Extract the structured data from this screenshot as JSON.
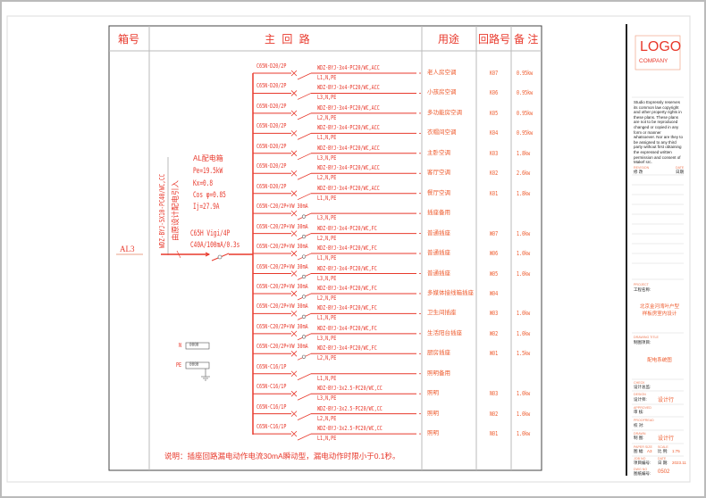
{
  "header": {
    "box_no": "箱号",
    "main_circuit": "主 回 路",
    "usage": "用途",
    "circuit_no": "回路号",
    "remarks": "备 注"
  },
  "box": {
    "id": "AL3",
    "title": "AL配电箱",
    "pe": "Pe=19.5kW",
    "kx": "Kx=0.8",
    "cos": "Cos φ=0.85",
    "ij": "Ij=27.9A",
    "main_breaker": "C65H Vigi/4P",
    "main_breaker_rating": "C40A/100mA/0.3s",
    "incoming_cable": "WDZ-BYJ-5X10-PC40/WC,CC",
    "incoming_source": "由原设计配电引入",
    "n_terminal": "N",
    "pe_terminal": "PE",
    "terminal_block": "0000"
  },
  "circuits": [
    {
      "breaker": "C65N-D20/2P",
      "cable": "WDZ-BYJ-3x4-PC20/WC,ACC",
      "phase": "L1,N,PE",
      "usage": "老人房空调",
      "no": "K07",
      "remark": "0.95kw",
      "rcd": false
    },
    {
      "breaker": "C65N-D20/2P",
      "cable": "WDZ-BYJ-3x4-PC20/WC,ACC",
      "phase": "L3,N,PE",
      "usage": "小孩房空调",
      "no": "K06",
      "remark": "0.95kw",
      "rcd": false
    },
    {
      "breaker": "C65N-D20/2P",
      "cable": "WDZ-BYJ-3x4-PC20/WC,ACC",
      "phase": "L2,N,PE",
      "usage": "多功能房空调",
      "no": "K05",
      "remark": "0.95kw",
      "rcd": false
    },
    {
      "breaker": "C65N-D20/2P",
      "cable": "WDZ-BYJ-3x4-PC20/WC,ACC",
      "phase": "L1,N,PE",
      "usage": "衣帽间空调",
      "no": "K04",
      "remark": "0.95kw",
      "rcd": false
    },
    {
      "breaker": "C65N-D20/2P",
      "cable": "WDZ-BYJ-3x4-PC20/WC,ACC",
      "phase": "L3,N,PE",
      "usage": "主卧空调",
      "no": "K03",
      "remark": "1.8kw",
      "rcd": false
    },
    {
      "breaker": "C65N-D20/2P",
      "cable": "WDZ-BYJ-3x4-PC20/WC,ACC",
      "phase": "L2,N,PE",
      "usage": "客厅空调",
      "no": "K02",
      "remark": "2.6kw",
      "rcd": false
    },
    {
      "breaker": "C65N-D20/2P",
      "cable": "WDZ-BYJ-3x4-PC20/WC,ACC",
      "phase": "L1,N,PE",
      "usage": "餐厅空调",
      "no": "K01",
      "remark": "1.8kw",
      "rcd": false
    },
    {
      "breaker": "C65N-C20/2P+VW 30mA",
      "cable": "",
      "phase": "L3,N,PE",
      "usage": "插座备用",
      "no": "",
      "remark": "",
      "rcd": true
    },
    {
      "breaker": "C65N-C20/2P+VW 30mA",
      "cable": "WDZ-BYJ-3x4-PC20/WC,FC",
      "phase": "L2,N,PE",
      "usage": "普通插座",
      "no": "W07",
      "remark": "1.0kw",
      "rcd": true
    },
    {
      "breaker": "C65N-C20/2P+VW 30mA",
      "cable": "WDZ-BYJ-3x4-PC20/WC,FC",
      "phase": "L1,N,PE",
      "usage": "普通插座",
      "no": "W06",
      "remark": "1.0kw",
      "rcd": true
    },
    {
      "breaker": "C65N-C20/2P+VW 30mA",
      "cable": "WDZ-BYJ-3x4-PC20/WC,FC",
      "phase": "L3,N,PE",
      "usage": "普通插座",
      "no": "W05",
      "remark": "1.0kw",
      "rcd": true
    },
    {
      "breaker": "C65N-C20/2P+VW 30mA",
      "cable": "WDZ-BYJ-3x4-PC20/WC,FC",
      "phase": "L2,N,PE",
      "usage": "多媒体接线箱插座",
      "no": "W04",
      "remark": "",
      "rcd": true
    },
    {
      "breaker": "C65N-C20/2P+VW 30mA",
      "cable": "WDZ-BYJ-3x4-PC20/WC,FC",
      "phase": "L1,N,PE",
      "usage": "卫生间插座",
      "no": "W03",
      "remark": "1.0kw",
      "rcd": true
    },
    {
      "breaker": "C65N-C20/2P+VW 30mA",
      "cable": "WDZ-BYJ-3x4-PC20/WC,FC",
      "phase": "L3,N,PE",
      "usage": "生活阳台插座",
      "no": "W02",
      "remark": "1.0kw",
      "rcd": true
    },
    {
      "breaker": "C65N-C20/2P+VW 30mA",
      "cable": "WDZ-BYJ-3x4-PC20/WC,FC",
      "phase": "L2,N,PE",
      "usage": "厨房插座",
      "no": "W01",
      "remark": "1.5kw",
      "rcd": true
    },
    {
      "breaker": "C65N-C16/1P",
      "cable": "",
      "phase": "L1,N,PE",
      "usage": "照明备用",
      "no": "",
      "remark": "",
      "rcd": false
    },
    {
      "breaker": "C65N-C16/1P",
      "cable": "WDZ-BYJ-3x2.5-PC20/WC,CC",
      "phase": "L3,N,PE",
      "usage": "照明",
      "no": "N03",
      "remark": "1.0kw",
      "rcd": false
    },
    {
      "breaker": "C65N-C16/1P",
      "cable": "WDZ-BYJ-3x2.5-PC20/WC,CC",
      "phase": "L2,N,PE",
      "usage": "照明",
      "no": "N02",
      "remark": "1.0kw",
      "rcd": false
    },
    {
      "breaker": "C65N-C16/1P",
      "cable": "WDZ-BYJ-3x2.5-PC20/WC,CC",
      "phase": "L1,N,PE",
      "usage": "照明",
      "no": "N01",
      "remark": "1.0kw",
      "rcd": false
    }
  ],
  "note": "说明：插座回路漏电动作电流30mA瞬动型，漏电动作时限小于0.1秒。",
  "title_block": {
    "logo": "LOGO",
    "company": "COMPANY",
    "copyright": "Studio Expressly reserves its common law copyright and other property rights in these plans. These plans are not to be reproduced changed or copied in any form or manner whatsoever. Nor are they to be assigned to any third party without first obtaining the expressed written permission and consent of Makef src.",
    "revision_en": "REVISION",
    "revision": "修 改",
    "date_en": "DATE",
    "date": "日期",
    "project_en": "PROJECT",
    "project": "工程名称:",
    "project_name": "北京金河湾叶户型\n样板房室内设计",
    "drawing_title_en": "DRAWING TITLE",
    "drawing_title": "制图项目:",
    "drawing_name": "配电系统图",
    "check_en": "CHECK",
    "check": "设计总监:",
    "design_en": "DESIGN",
    "design": "设计师:",
    "designer": "设计行",
    "approved_en": "APPROVED",
    "approved": "审 核:",
    "proofread_en": "PROOFREAD",
    "proofread": "校 对:",
    "drawn_en": "DRAWN",
    "drawn": "制 图:",
    "drawer": "设计行",
    "paper_en": "PAPER SIZE",
    "paper": "图 幅:",
    "paper_value": "A3",
    "scale_en": "SCALE",
    "scale": "比 例:",
    "scale_value": "1:75",
    "job_en": "JOB NO",
    "job": "项目编号:",
    "date2_en": "DATE",
    "date2": "日 期:",
    "date2_value": "2023.11",
    "dwg_en": "DWG NO",
    "dwg": "图纸编号:",
    "dwg_value": "0502"
  },
  "colors": {
    "line": "#e8392c",
    "text": "#ee5a2c",
    "frame": "#555555"
  }
}
